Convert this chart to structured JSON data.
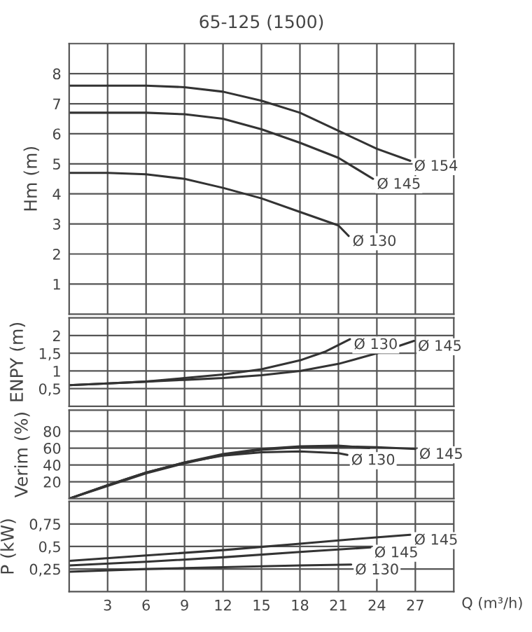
{
  "chart_data": [
    {
      "type": "line",
      "title": "65-125 (1500)",
      "ylabel": "Hm (m)",
      "xlim": [
        0,
        30
      ],
      "xticks": [
        3,
        6,
        9,
        12,
        15,
        18,
        21,
        24,
        27
      ],
      "ylim": [
        0,
        9
      ],
      "yticks": [
        1,
        2,
        3,
        4,
        5,
        6,
        7,
        8
      ],
      "grid": true,
      "tick_labels": "y",
      "series": [
        {
          "name": "Ø 154",
          "color": "#333333",
          "x": [
            0,
            3,
            6,
            9,
            12,
            15,
            18,
            21,
            24,
            26.6
          ],
          "values": [
            7.6,
            7.6,
            7.6,
            7.55,
            7.4,
            7.1,
            6.7,
            6.1,
            5.5,
            5.1
          ]
        },
        {
          "name": "Ø 145",
          "color": "#333333",
          "x": [
            0,
            3,
            6,
            9,
            12,
            15,
            18,
            21,
            23.7
          ],
          "values": [
            6.7,
            6.7,
            6.7,
            6.65,
            6.5,
            6.15,
            5.7,
            5.2,
            4.5
          ]
        },
        {
          "name": "Ø 130",
          "color": "#333333",
          "x": [
            0,
            3,
            6,
            9,
            12,
            15,
            18,
            21,
            21.8
          ],
          "values": [
            4.7,
            4.7,
            4.65,
            4.5,
            4.2,
            3.85,
            3.4,
            2.95,
            2.6
          ]
        }
      ]
    },
    {
      "type": "line",
      "ylabel": "ENPY (m)",
      "xlim": [
        0,
        30
      ],
      "xticks": [
        3,
        6,
        9,
        12,
        15,
        18,
        21,
        24,
        27
      ],
      "ylim": [
        0,
        2.5
      ],
      "yticks": [
        {
          "value": 0.5,
          "label": "0,5"
        },
        1,
        {
          "value": 1.5,
          "label": "1,5"
        },
        2
      ],
      "grid": true,
      "tick_labels": "y",
      "series": [
        {
          "name": "Ø 130",
          "color": "#333333",
          "x": [
            0,
            3,
            6,
            9,
            12,
            15,
            18,
            20,
            21.9
          ],
          "values": [
            0.6,
            0.65,
            0.7,
            0.8,
            0.9,
            1.05,
            1.3,
            1.55,
            1.9
          ]
        },
        {
          "name": "Ø 145",
          "color": "#333333",
          "x": [
            0,
            3,
            6,
            9,
            12,
            15,
            18,
            21,
            24,
            26.9
          ],
          "values": [
            0.6,
            0.65,
            0.7,
            0.75,
            0.8,
            0.88,
            1.0,
            1.2,
            1.5,
            1.85
          ]
        }
      ]
    },
    {
      "type": "line",
      "ylabel": "Verim (%)",
      "xlim": [
        0,
        30
      ],
      "xticks": [
        3,
        6,
        9,
        12,
        15,
        18,
        21,
        24,
        27
      ],
      "ylim": [
        0,
        105
      ],
      "yticks": [
        20,
        40,
        60,
        80
      ],
      "grid": true,
      "tick_labels": "y",
      "series": [
        {
          "name": "Ø 145",
          "color": "#333333",
          "x": [
            0,
            3,
            6,
            9,
            12,
            15,
            18,
            21,
            24,
            27
          ],
          "values": [
            0,
            15,
            30,
            42,
            52,
            58,
            61,
            62,
            61,
            59
          ]
        },
        {
          "color": "#333333",
          "x": [
            0,
            3,
            6,
            9,
            12,
            15,
            18,
            21,
            23.4
          ],
          "values": [
            0,
            16,
            31,
            43,
            53,
            59,
            62,
            63,
            60
          ]
        },
        {
          "name": "Ø 130",
          "color": "#333333",
          "x": [
            0,
            3,
            6,
            9,
            12,
            15,
            18,
            21,
            21.7
          ],
          "values": [
            0,
            16,
            31,
            43,
            51,
            55,
            56,
            54,
            52
          ]
        }
      ]
    },
    {
      "type": "line",
      "ylabel": "P (kW)",
      "xlabel": "Q (m³/h)",
      "xlim": [
        0,
        30
      ],
      "xticks": [
        3,
        6,
        9,
        12,
        15,
        18,
        21,
        24,
        27
      ],
      "ylim": [
        0,
        1
      ],
      "yticks": [
        {
          "value": 0.25,
          "label": "0,25"
        },
        {
          "value": 0.5,
          "label": "0,5"
        },
        {
          "value": 0.75,
          "label": "0,75"
        }
      ],
      "grid": true,
      "series": [
        {
          "name": "Ø 145",
          "color": "#333333",
          "x": [
            0,
            6,
            12,
            18,
            22,
            26.6
          ],
          "values": [
            0.34,
            0.4,
            0.46,
            0.53,
            0.58,
            0.63
          ]
        },
        {
          "name": "Ø 145",
          "color": "#333333",
          "x": [
            0,
            6,
            12,
            18,
            23.5
          ],
          "values": [
            0.29,
            0.33,
            0.38,
            0.44,
            0.49
          ]
        },
        {
          "name": "Ø 130",
          "color": "#333333",
          "x": [
            0,
            6,
            12,
            18,
            22
          ],
          "values": [
            0.22,
            0.25,
            0.27,
            0.29,
            0.3
          ]
        }
      ]
    }
  ]
}
